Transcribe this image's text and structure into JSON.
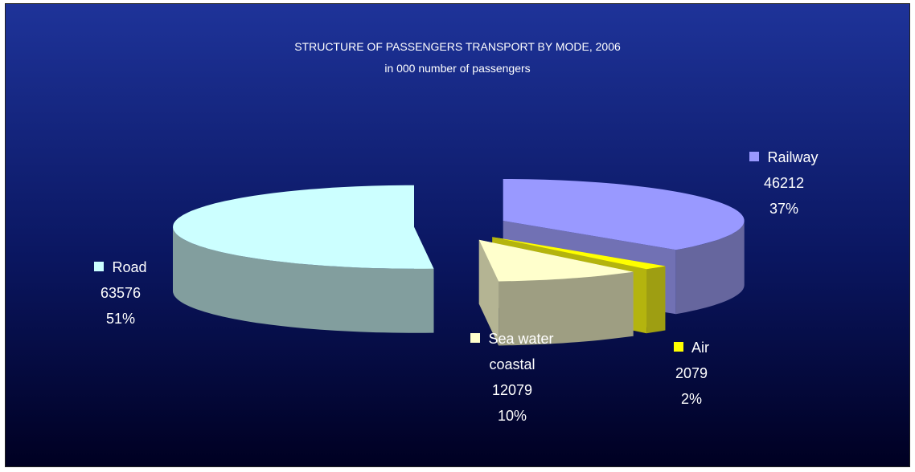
{
  "chart_data": {
    "type": "pie3d",
    "title": "STRUCTURE OF PASSENGERS TRANSPORT BY MODE, 2006",
    "subtitle": "in 000 number of passengers",
    "series": [
      {
        "name": "Railway",
        "color": "#9999ff",
        "value": 46212,
        "percent_label": "37%"
      },
      {
        "name": "Air",
        "color": "#ffff00",
        "value": 2079,
        "percent_label": "2%"
      },
      {
        "name": "Sea water coastal",
        "color": "#ffffcc",
        "value": 12079,
        "percent_label": "10%"
      },
      {
        "name": "Road",
        "color": "#ccffff",
        "value": 63576,
        "percent_label": "51%"
      }
    ]
  }
}
